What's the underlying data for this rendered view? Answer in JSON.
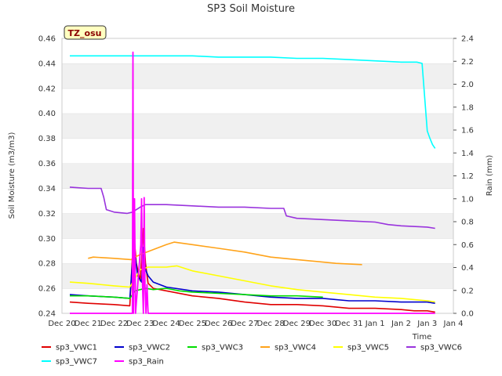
{
  "chart_data": {
    "type": "line",
    "title": "SP3 Soil Moisture",
    "xlabel": "Time",
    "ylabel": "Soil Moisture (m3/m3)",
    "ylabel_right": "Rain (mm)",
    "annotation": "TZ_osu",
    "x_ticks": [
      "Dec 20",
      "Dec 21",
      "Dec 22",
      "Dec 23",
      "Dec 24",
      "Dec 25",
      "Dec 26",
      "Dec 27",
      "Dec 28",
      "Dec 29",
      "Dec 30",
      "Dec 31",
      "Jan 1",
      "Jan 2",
      "Jan 3",
      "Jan 4"
    ],
    "xlim_days": [
      0,
      15
    ],
    "ylim": [
      0.24,
      0.46
    ],
    "y_ticks": [
      "0.24",
      "0.26",
      "0.28",
      "0.30",
      "0.32",
      "0.34",
      "0.36",
      "0.38",
      "0.40",
      "0.42",
      "0.44",
      "0.46"
    ],
    "ylim_right": [
      0.0,
      2.4
    ],
    "y_ticks_right": [
      "0.0",
      "0.2",
      "0.4",
      "0.6",
      "0.8",
      "1.0",
      "1.2",
      "1.4",
      "1.6",
      "1.8",
      "2.0",
      "2.2",
      "2.4"
    ],
    "grid": "horizontal bands",
    "legend_placement": "bottom",
    "series": [
      {
        "name": "sp3_VWC1",
        "color": "#e00000",
        "axis": "left",
        "x": [
          0.3,
          1.0,
          2.0,
          2.6,
          2.75,
          2.85,
          3.0,
          3.12,
          3.2,
          3.3,
          3.5,
          4.0,
          5.0,
          6.0,
          7.0,
          8.0,
          9.0,
          10.0,
          11.0,
          12.0,
          13.0,
          13.5,
          14.0,
          14.3
        ],
        "y": [
          0.249,
          0.248,
          0.247,
          0.246,
          0.305,
          0.28,
          0.266,
          0.308,
          0.28,
          0.264,
          0.26,
          0.258,
          0.254,
          0.252,
          0.249,
          0.247,
          0.247,
          0.246,
          0.244,
          0.244,
          0.243,
          0.242,
          0.242,
          0.241
        ]
      },
      {
        "name": "sp3_VWC2",
        "color": "#0000cc",
        "axis": "left",
        "x": [
          0.3,
          1.0,
          2.0,
          2.6,
          2.75,
          2.9,
          3.05,
          3.12,
          3.2,
          3.3,
          3.5,
          4.0,
          5.0,
          6.0,
          7.0,
          8.0,
          9.0,
          10.0,
          11.0,
          12.0,
          13.0,
          13.5,
          14.0,
          14.3
        ],
        "y": [
          0.255,
          0.254,
          0.253,
          0.252,
          0.295,
          0.27,
          0.265,
          0.293,
          0.275,
          0.27,
          0.265,
          0.261,
          0.258,
          0.257,
          0.255,
          0.253,
          0.252,
          0.252,
          0.25,
          0.25,
          0.249,
          0.249,
          0.249,
          0.248
        ]
      },
      {
        "name": "sp3_VWC3",
        "color": "#00dd00",
        "axis": "left",
        "x": [
          0.3,
          1.0,
          2.0,
          2.6,
          2.8,
          3.2,
          3.5,
          4.0,
          4.5,
          5.0,
          6.0,
          7.0,
          8.0,
          9.0,
          10.0
        ],
        "y": [
          0.254,
          0.254,
          0.253,
          0.252,
          0.258,
          0.26,
          0.259,
          0.26,
          0.258,
          0.257,
          0.256,
          0.255,
          0.254,
          0.254,
          0.253
        ]
      },
      {
        "name": "sp3_VWC4",
        "color": "#ffa31a",
        "axis": "left",
        "x": [
          1.0,
          1.2,
          2.0,
          2.65,
          2.8,
          3.0,
          3.5,
          4.0,
          4.3,
          5.0,
          6.0,
          7.0,
          8.0,
          9.0,
          10.0,
          10.5,
          11.5
        ],
        "y": [
          0.284,
          0.285,
          0.284,
          0.283,
          0.285,
          0.287,
          0.291,
          0.295,
          0.297,
          0.295,
          0.292,
          0.289,
          0.285,
          0.283,
          0.281,
          0.28,
          0.279
        ]
      },
      {
        "name": "sp3_VWC5",
        "color": "#ffff00",
        "axis": "left",
        "x": [
          0.3,
          1.0,
          2.0,
          2.6,
          2.8,
          3.0,
          3.3,
          4.0,
          4.4,
          5.0,
          6.0,
          7.0,
          8.0,
          9.0,
          10.0,
          11.0,
          12.0,
          13.0,
          14.0,
          14.3
        ],
        "y": [
          0.265,
          0.264,
          0.262,
          0.261,
          0.268,
          0.275,
          0.277,
          0.277,
          0.278,
          0.274,
          0.27,
          0.266,
          0.262,
          0.259,
          0.257,
          0.255,
          0.253,
          0.252,
          0.25,
          0.249
        ]
      },
      {
        "name": "sp3_VWC6",
        "color": "#9933dd",
        "axis": "left",
        "x": [
          0.3,
          1.0,
          1.5,
          1.6,
          1.7,
          2.0,
          2.5,
          2.7,
          3.0,
          3.2,
          4.0,
          5.0,
          6.0,
          7.0,
          8.0,
          8.5,
          8.6,
          9.0,
          10.0,
          11.0,
          12.0,
          12.5,
          13.0,
          14.0,
          14.3
        ],
        "y": [
          0.341,
          0.34,
          0.34,
          0.333,
          0.323,
          0.321,
          0.32,
          0.321,
          0.325,
          0.327,
          0.327,
          0.326,
          0.325,
          0.325,
          0.324,
          0.324,
          0.318,
          0.316,
          0.315,
          0.314,
          0.313,
          0.311,
          0.31,
          0.309,
          0.308
        ]
      },
      {
        "name": "sp3_VWC7",
        "color": "#00ffff",
        "axis": "left",
        "x": [
          0.3,
          1.0,
          2.0,
          3.0,
          4.0,
          5.0,
          6.0,
          7.0,
          8.0,
          9.0,
          10.0,
          11.0,
          12.0,
          13.0,
          13.6,
          13.8,
          14.0,
          14.1,
          14.2,
          14.3
        ],
        "y": [
          0.446,
          0.446,
          0.446,
          0.446,
          0.446,
          0.446,
          0.445,
          0.445,
          0.445,
          0.444,
          0.444,
          0.443,
          0.442,
          0.441,
          0.441,
          0.44,
          0.386,
          0.38,
          0.375,
          0.372
        ]
      },
      {
        "name": "sp3_Rain",
        "color": "#ff00ff",
        "axis": "right",
        "x": [
          0.3,
          2.7,
          2.72,
          2.74,
          2.78,
          2.82,
          3.02,
          3.05,
          3.08,
          3.12,
          3.15,
          3.18,
          3.22,
          3.26,
          3.3,
          3.34,
          14.3
        ],
        "y": [
          0.0,
          0.0,
          2.28,
          0.0,
          1.0,
          0.0,
          0.6,
          1.0,
          0.3,
          0.0,
          1.01,
          0.25,
          0.0,
          0.25,
          0.0,
          0.0,
          0.0
        ]
      }
    ]
  }
}
